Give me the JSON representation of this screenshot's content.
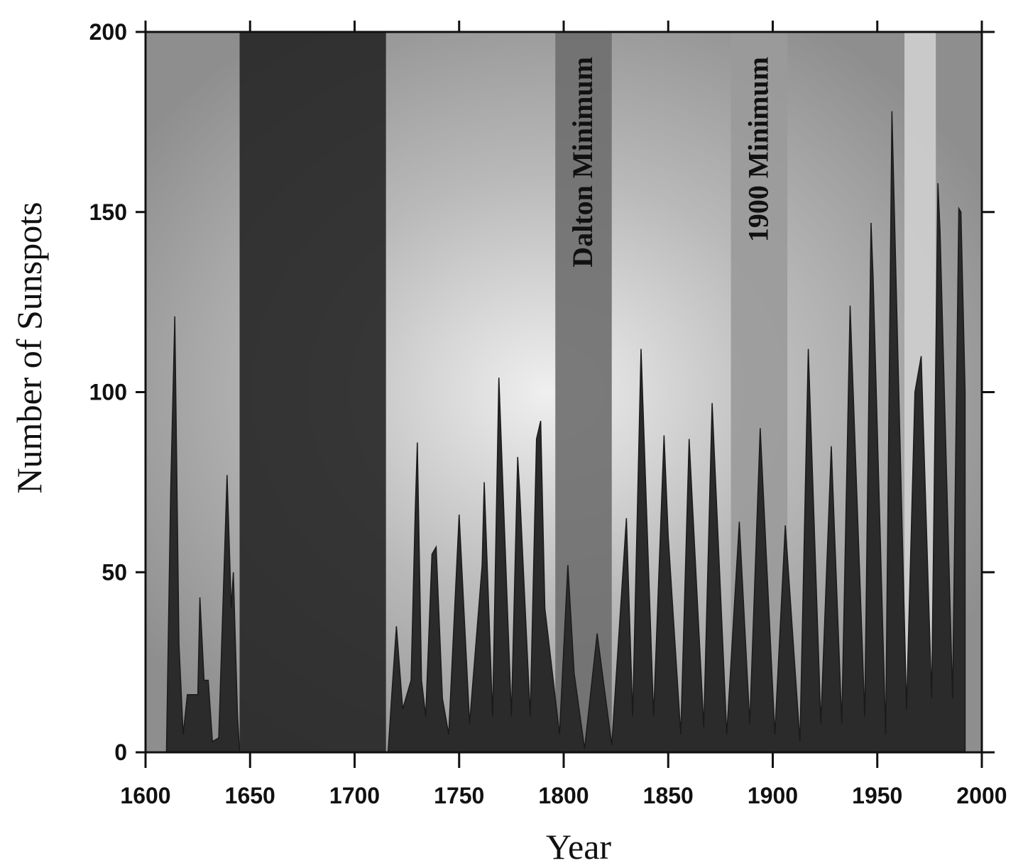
{
  "chart_data": {
    "type": "area",
    "x_label": "Year",
    "y_label": "Number of Sunspots",
    "x": [
      1610,
      1612,
      1614,
      1616,
      1618,
      1620,
      1625,
      1626,
      1628,
      1630,
      1632,
      1635,
      1639,
      1641,
      1642,
      1644,
      1645,
      1716,
      1718,
      1720,
      1723,
      1727,
      1729,
      1730,
      1732,
      1734,
      1737,
      1739,
      1742,
      1745,
      1750,
      1755,
      1761,
      1762,
      1766,
      1769,
      1775,
      1778,
      1779,
      1784,
      1787,
      1789,
      1791,
      1798,
      1802,
      1805,
      1810,
      1816,
      1823,
      1830,
      1833,
      1837,
      1843,
      1848,
      1850,
      1856,
      1860,
      1867,
      1871,
      1878,
      1884,
      1889,
      1894,
      1901,
      1906,
      1913,
      1917,
      1923,
      1928,
      1933,
      1937,
      1944,
      1947,
      1948,
      1954,
      1957,
      1964,
      1968,
      1971,
      1976,
      1979,
      1980,
      1986,
      1989,
      1990,
      1992
    ],
    "values": [
      0,
      72,
      121,
      30,
      5,
      16,
      16,
      43,
      20,
      20,
      3,
      4,
      77,
      40,
      50,
      10,
      0,
      0,
      18,
      35,
      12,
      20,
      67,
      86,
      20,
      10,
      55,
      57,
      15,
      5,
      66,
      8,
      52,
      75,
      10,
      104,
      10,
      82,
      72,
      10,
      87,
      92,
      40,
      5,
      52,
      22,
      1,
      33,
      2,
      65,
      10,
      112,
      10,
      88,
      60,
      5,
      87,
      7,
      97,
      5,
      64,
      8,
      90,
      5,
      63,
      3,
      112,
      8,
      85,
      8,
      124,
      10,
      147,
      132,
      5,
      178,
      12,
      100,
      110,
      15,
      158,
      145,
      15,
      151,
      150,
      100
    ],
    "color": "#2b2b2b",
    "xlim": [
      1600,
      2000
    ],
    "xticks": [
      1600,
      1650,
      1700,
      1750,
      1800,
      1850,
      1900,
      1950,
      2000
    ],
    "ylim": [
      0,
      200
    ],
    "yticks": [
      0,
      50,
      100,
      150,
      200
    ],
    "regions": [
      {
        "x": [
          1645,
          1715
        ],
        "color": "#262626"
      },
      {
        "x": [
          1796,
          1823
        ],
        "color": "#6e6e6e",
        "label": "Dalton Minimum"
      },
      {
        "x": [
          1880,
          1907
        ],
        "color": "#9a9a9a",
        "label": "1900 Minimum"
      },
      {
        "x": [
          1963,
          1978
        ],
        "color": "#cfcfcf"
      }
    ]
  }
}
